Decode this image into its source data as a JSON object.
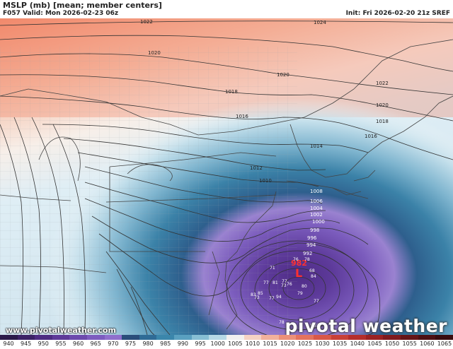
{
  "header": {
    "title": "MSLP (mb) [mean; member centers]",
    "valid": "F057 Valid: Mon 2026-02-23 06z",
    "init": "Init: Fri 2026-02-20 21z SREF"
  },
  "isobar_labels": [
    "1022",
    "1024",
    "1020",
    "1020",
    "1018",
    "1022",
    "1020",
    "1016",
    "1018",
    "1016",
    "1014",
    "1012",
    "1010",
    "1008",
    "1006",
    "1004",
    "1002",
    "1000",
    "998",
    "996",
    "994",
    "992",
    "992"
  ],
  "low_center": {
    "symbol": "L",
    "value": "982"
  },
  "member_centers": [
    "76",
    "78",
    "71",
    "68",
    "84",
    "77",
    "81",
    "77",
    "76",
    "73",
    "80",
    "79",
    "83",
    "85",
    "73",
    "77",
    "94",
    "77",
    "78"
  ],
  "footer": {
    "website": "www.pivotalweather.com",
    "brand": "pivotal weather"
  },
  "colorbar": {
    "labels": [
      "940",
      "945",
      "950",
      "955",
      "960",
      "965",
      "970",
      "975",
      "980",
      "985",
      "990",
      "995",
      "1000",
      "1005",
      "1010",
      "1015",
      "1020",
      "1025",
      "1030",
      "1035",
      "1040",
      "1045",
      "1050",
      "1055",
      "1060",
      "1065"
    ],
    "colors": [
      "#2b1a4a",
      "#3c2266",
      "#4e2c82",
      "#5e3a99",
      "#6d4aad",
      "#7d5cbf",
      "#8f6fcc",
      "#2a4d7a",
      "#2f6b96",
      "#3b86ab",
      "#5aa0c0",
      "#87bfd4",
      "#b6d9e6",
      "#f2f0ef",
      "#f6d2c4",
      "#f2b19c",
      "#ec9179",
      "#e4735e",
      "#d95848",
      "#c94138",
      "#b52e2c",
      "#9b2223",
      "#7f1a1d",
      "#651518",
      "#4c1013",
      "#380c0f"
    ]
  },
  "colors": {
    "high": "#f08a6a",
    "neutral": "#f7efe9",
    "low_blue": "#2a6f9e",
    "low_purple": "#6a4aa8"
  }
}
